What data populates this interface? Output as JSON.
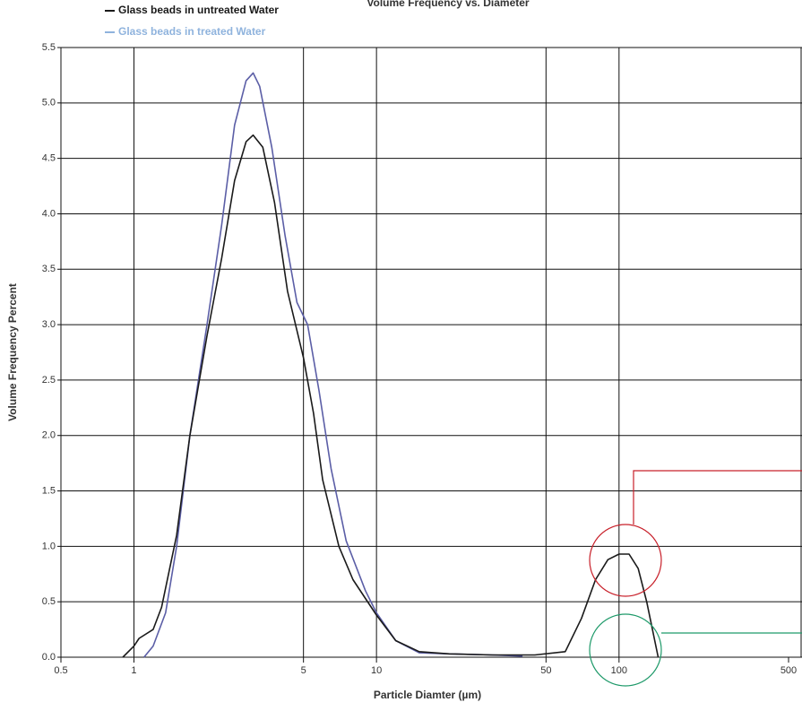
{
  "chart_data": {
    "type": "line",
    "title": "Volume Frequency vs. Diameter",
    "x_label": "Particle Diamter (µm)",
    "y_label": "Volume Frequency Percent",
    "x_scale": "log",
    "grid": true,
    "xlim": [
      0.5,
      500
    ],
    "xticks": [
      0.5,
      1,
      5,
      10,
      50,
      100,
      500
    ],
    "ylim": [
      0,
      5.5
    ],
    "yticks": [
      {
        "value": 0,
        "label": "0.0"
      },
      0.5,
      {
        "value": 1,
        "label": "1.0"
      },
      1.5,
      {
        "value": 2,
        "label": "2.0"
      },
      2.5,
      {
        "value": 3,
        "label": "3.0"
      },
      3.5,
      {
        "value": 4,
        "label": "4.0"
      },
      4.5,
      {
        "value": 5,
        "label": "5.0"
      },
      5.5
    ],
    "series": [
      {
        "name": "Glass beads in untreated Water",
        "color": "#1a1a1a",
        "label_color": "#1a1a1a",
        "x": [
          0.9,
          1.0,
          1.05,
          1.2,
          1.3,
          1.5,
          1.7,
          2.0,
          2.3,
          2.6,
          2.9,
          3.1,
          3.4,
          3.8,
          4.3,
          5.0,
          5.5,
          6,
          7,
          8,
          10,
          12,
          15,
          20,
          30,
          45,
          60,
          70,
          80,
          90,
          100,
          110,
          120,
          130,
          145
        ],
        "values": [
          0,
          0.1,
          0.17,
          0.25,
          0.45,
          1.1,
          2.0,
          2.9,
          3.6,
          4.3,
          4.65,
          4.71,
          4.6,
          4.1,
          3.3,
          2.7,
          2.2,
          1.6,
          1.0,
          0.7,
          0.38,
          0.15,
          0.05,
          0.03,
          0.02,
          0.02,
          0.05,
          0.35,
          0.7,
          0.88,
          0.93,
          0.93,
          0.8,
          0.5,
          0
        ]
      },
      {
        "name": "Glass beads in treated Water",
        "color": "#5b5ea6",
        "label_color": "#8fb3dd",
        "x": [
          1.1,
          1.2,
          1.35,
          1.5,
          1.7,
          2.0,
          2.3,
          2.6,
          2.9,
          3.1,
          3.3,
          3.7,
          4.2,
          4.7,
          5.2,
          5.8,
          6.5,
          7.5,
          9,
          10,
          12,
          15,
          20,
          30,
          40
        ],
        "values": [
          0,
          0.1,
          0.4,
          1.0,
          2.0,
          3.0,
          3.9,
          4.8,
          5.2,
          5.27,
          5.15,
          4.6,
          3.8,
          3.2,
          3.0,
          2.4,
          1.7,
          1.05,
          0.6,
          0.4,
          0.15,
          0.04,
          0.03,
          0.02,
          0.01
        ]
      }
    ]
  }
}
